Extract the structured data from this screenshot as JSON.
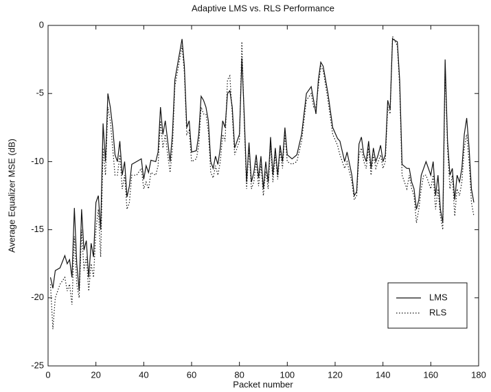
{
  "chart_data": {
    "type": "line",
    "title": "Adaptive LMS vs. RLS Performance",
    "x_label": "Packet number",
    "y_label": "Average Equalizer MSE (dB)",
    "xlim": [
      0,
      180
    ],
    "ylim": [
      -25,
      0
    ],
    "xticks": [
      0,
      20,
      40,
      60,
      80,
      100,
      120,
      140,
      160,
      180
    ],
    "yticks": [
      -25,
      -20,
      -15,
      -10,
      -5,
      0
    ],
    "legend": "lower right",
    "x": [
      1,
      2,
      3,
      5,
      7,
      8,
      9,
      10,
      11,
      12,
      13,
      14,
      15,
      16,
      17,
      18,
      19,
      20,
      21,
      22,
      23,
      24,
      25,
      26,
      27,
      28,
      29,
      30,
      31,
      32,
      33,
      34,
      35,
      37,
      39,
      40,
      41,
      42,
      43,
      45,
      46,
      47,
      48,
      49,
      50,
      51,
      52,
      53,
      55,
      56,
      57,
      58,
      59,
      60,
      62,
      63,
      64,
      65,
      66,
      67,
      68,
      69,
      70,
      71,
      72,
      73,
      74,
      75,
      76,
      77,
      78,
      79,
      80,
      81,
      82,
      83,
      84,
      85,
      86,
      87,
      88,
      89,
      90,
      91,
      92,
      93,
      94,
      95,
      96,
      97,
      98,
      99,
      100,
      102,
      104,
      106,
      108,
      110,
      111,
      112,
      113,
      114,
      115,
      117,
      119,
      121,
      122,
      124,
      125,
      127,
      128,
      129,
      130,
      131,
      132,
      133,
      134,
      135,
      136,
      137,
      138,
      139,
      140,
      141,
      142,
      143,
      144,
      146,
      147,
      148,
      150,
      151,
      152,
      153,
      154,
      155,
      156,
      157,
      158,
      159,
      160,
      161,
      162,
      163,
      164,
      165,
      166,
      167,
      168,
      169,
      170,
      171,
      172,
      173,
      174,
      175,
      176,
      177,
      178
    ],
    "series": [
      {
        "name": "LMS",
        "color": "#111111",
        "line_style": "solid",
        "values": [
          -18.5,
          -19.3,
          -18,
          -17.8,
          -16.9,
          -17.5,
          -17.2,
          -18.5,
          -13.4,
          -17.5,
          -19.5,
          -13.5,
          -16.5,
          -15.8,
          -18.5,
          -16,
          -17,
          -13,
          -12.5,
          -15,
          -7.2,
          -10,
          -5,
          -6,
          -7.5,
          -9.5,
          -10,
          -8.5,
          -11,
          -10,
          -12.6,
          -11.8,
          -10.2,
          -10,
          -9.8,
          -11.3,
          -10.3,
          -10.8,
          -9.9,
          -10,
          -9.3,
          -6,
          -8,
          -7,
          -8.5,
          -10,
          -8,
          -4,
          -2,
          -1,
          -3,
          -7.5,
          -7,
          -9.3,
          -9.2,
          -8,
          -5.2,
          -5.5,
          -6,
          -7,
          -10,
          -10.5,
          -9.6,
          -10.2,
          -9,
          -7,
          -7.5,
          -5,
          -4.8,
          -6,
          -9,
          -8.5,
          -8,
          -2.4,
          -6.5,
          -11.5,
          -8.6,
          -11.5,
          -10.8,
          -9.5,
          -11.2,
          -9.6,
          -12,
          -10,
          -11.5,
          -8.2,
          -11,
          -9,
          -11,
          -8.8,
          -10,
          -7.5,
          -9.5,
          -9.8,
          -9.5,
          -8,
          -5,
          -4.5,
          -5.5,
          -6.5,
          -4,
          -2.7,
          -3,
          -5,
          -7.5,
          -8.3,
          -8.5,
          -10,
          -9.3,
          -11,
          -12.5,
          -12.2,
          -8.7,
          -8.2,
          -9.5,
          -10,
          -8.5,
          -10.5,
          -9,
          -10,
          -9.5,
          -8.8,
          -10,
          -9.5,
          -5.5,
          -6.2,
          -1,
          -1.2,
          -4,
          -10.2,
          -10.5,
          -10.5,
          -11.5,
          -12,
          -13.5,
          -12.8,
          -11,
          -10.5,
          -10,
          -10.5,
          -11,
          -10,
          -12.5,
          -11,
          -13.5,
          -14.5,
          -2.5,
          -8.5,
          -11,
          -10.5,
          -12.8,
          -11,
          -11.5,
          -10.5,
          -8,
          -6.8,
          -9,
          -12,
          -13
        ]
      },
      {
        "name": "RLS",
        "color": "#111111",
        "line_style": "dotted",
        "values": [
          -19,
          -22.3,
          -20,
          -19,
          -18.5,
          -19.5,
          -19,
          -20.5,
          -15.5,
          -19,
          -20,
          -15,
          -18,
          -17,
          -19.5,
          -17.5,
          -18.5,
          -15,
          -13.5,
          -17,
          -9,
          -11,
          -6,
          -7,
          -9,
          -11,
          -11,
          -9.5,
          -12,
          -11,
          -13.5,
          -13,
          -11,
          -11,
          -10.5,
          -12,
          -11.5,
          -12,
          -10.8,
          -11,
          -10.3,
          -7,
          -9,
          -8,
          -9.5,
          -10.8,
          -9,
          -4.5,
          -2.5,
          -1.5,
          -3.5,
          -8,
          -7.7,
          -10,
          -9.8,
          -8.8,
          -6,
          -6.5,
          -6.5,
          -7.8,
          -10.8,
          -11.2,
          -10.3,
          -11,
          -10,
          -8,
          -8.5,
          -4,
          -3.7,
          -6.5,
          -9.5,
          -9,
          -8.5,
          -1.2,
          -7,
          -12,
          -9,
          -12,
          -11.5,
          -10,
          -11.8,
          -10.2,
          -12.5,
          -10.7,
          -12,
          -8.8,
          -11.5,
          -9.5,
          -11.3,
          -9.2,
          -10.5,
          -8,
          -10,
          -10.2,
          -10,
          -8.5,
          -5.5,
          -5,
          -6,
          -6,
          -4.5,
          -3,
          -3.3,
          -5.5,
          -8,
          -8.8,
          -9.5,
          -10.5,
          -10,
          -11.5,
          -12.8,
          -12.5,
          -9.5,
          -9,
          -10,
          -10.5,
          -9,
          -11,
          -9.5,
          -10.5,
          -10,
          -9.5,
          -10.5,
          -10,
          -6,
          -6.5,
          -0.8,
          -1.5,
          -4.5,
          -11,
          -12,
          -11,
          -12,
          -12.5,
          -14.5,
          -13.5,
          -12,
          -11,
          -11,
          -11.5,
          -12,
          -11,
          -13.5,
          -12,
          -14,
          -15,
          -3,
          -9,
          -12,
          -11,
          -14,
          -12,
          -12.5,
          -11.5,
          -9,
          -8,
          -10,
          -13,
          -14
        ]
      }
    ]
  }
}
